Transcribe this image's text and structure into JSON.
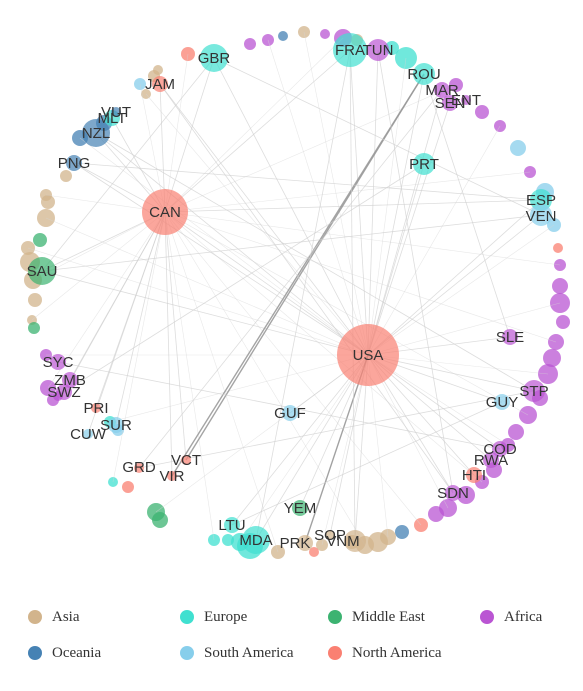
{
  "colors": {
    "Asia": "#d2b48c",
    "Europe": "#40e0d0",
    "Middle East": "#3cb371",
    "Africa": "#ba55d3",
    "Oceania": "#4682b4",
    "South America": "#87ceeb",
    "North America": "#fa8072"
  },
  "legend": {
    "items": [
      {
        "label": "Asia",
        "color": "#d2b48c"
      },
      {
        "label": "Europe",
        "color": "#40e0d0"
      },
      {
        "label": "Middle East",
        "color": "#3cb371"
      },
      {
        "label": "Africa",
        "color": "#ba55d3"
      },
      {
        "label": "Oceania",
        "color": "#4682b4"
      },
      {
        "label": "South America",
        "color": "#87ceeb"
      },
      {
        "label": "North America",
        "color": "#fa8072"
      }
    ]
  },
  "chart_data": {
    "type": "network",
    "nodes": [
      {
        "id": "USA",
        "region": "North America",
        "weight": 10
      },
      {
        "id": "CAN",
        "region": "North America",
        "weight": 6
      },
      {
        "id": "GBR",
        "region": "Europe",
        "weight": 4
      },
      {
        "id": "FRA",
        "region": "Europe",
        "weight": 5
      },
      {
        "id": "TUN",
        "region": "Africa",
        "weight": 3
      },
      {
        "id": "ROU",
        "region": "Europe",
        "weight": 3
      },
      {
        "id": "MAR",
        "region": "Africa",
        "weight": 2
      },
      {
        "id": "SEN",
        "region": "Africa",
        "weight": 2
      },
      {
        "id": "ENT",
        "region": "Africa",
        "weight": 1
      },
      {
        "id": "PRT",
        "region": "Europe",
        "weight": 3
      },
      {
        "id": "ESP",
        "region": "Europe",
        "weight": 3
      },
      {
        "id": "VEN",
        "region": "South America",
        "weight": 3
      },
      {
        "id": "SLE",
        "region": "Africa",
        "weight": 2
      },
      {
        "id": "STP",
        "region": "Africa",
        "weight": 3
      },
      {
        "id": "GUY",
        "region": "South America",
        "weight": 2
      },
      {
        "id": "COD",
        "region": "Africa",
        "weight": 2
      },
      {
        "id": "RWA",
        "region": "Africa",
        "weight": 2
      },
      {
        "id": "HTI",
        "region": "North America",
        "weight": 2
      },
      {
        "id": "SDN",
        "region": "Africa",
        "weight": 2
      },
      {
        "id": "YEM",
        "region": "Middle East",
        "weight": 2
      },
      {
        "id": "SOP",
        "region": "Asia",
        "weight": 1
      },
      {
        "id": "VNM",
        "region": "Asia",
        "weight": 3
      },
      {
        "id": "PRK",
        "region": "Asia",
        "weight": 2
      },
      {
        "id": "MDA",
        "region": "Europe",
        "weight": 4
      },
      {
        "id": "LTU",
        "region": "Europe",
        "weight": 2
      },
      {
        "id": "GUF",
        "region": "South America",
        "weight": 2
      },
      {
        "id": "VCT",
        "region": "North America",
        "weight": 1
      },
      {
        "id": "VIR",
        "region": "North America",
        "weight": 1
      },
      {
        "id": "GRD",
        "region": "North America",
        "weight": 1
      },
      {
        "id": "CUW",
        "region": "South America",
        "weight": 1
      },
      {
        "id": "SUR",
        "region": "South America",
        "weight": 2
      },
      {
        "id": "PRI",
        "region": "North America",
        "weight": 1
      },
      {
        "id": "SWZ",
        "region": "Africa",
        "weight": 2
      },
      {
        "id": "ZMB",
        "region": "Africa",
        "weight": 2
      },
      {
        "id": "SYC",
        "region": "Africa",
        "weight": 2
      },
      {
        "id": "SAU",
        "region": "Middle East",
        "weight": 4
      },
      {
        "id": "PNG",
        "region": "Oceania",
        "weight": 2
      },
      {
        "id": "NZL",
        "region": "Oceania",
        "weight": 4
      },
      {
        "id": "MLT",
        "region": "Europe",
        "weight": 2
      },
      {
        "id": "VUT",
        "region": "Oceania",
        "weight": 1
      },
      {
        "id": "JAM",
        "region": "North America",
        "weight": 2
      }
    ],
    "edges": [
      [
        "USA",
        "CAN"
      ],
      [
        "USA",
        "GBR"
      ],
      [
        "USA",
        "FRA"
      ],
      [
        "USA",
        "TUN"
      ],
      [
        "USA",
        "ROU"
      ],
      [
        "USA",
        "MAR"
      ],
      [
        "USA",
        "SEN"
      ],
      [
        "USA",
        "PRT"
      ],
      [
        "USA",
        "ESP"
      ],
      [
        "USA",
        "VEN"
      ],
      [
        "USA",
        "SLE"
      ],
      [
        "USA",
        "STP"
      ],
      [
        "USA",
        "GUY"
      ],
      [
        "USA",
        "COD"
      ],
      [
        "USA",
        "RWA"
      ],
      [
        "USA",
        "HTI"
      ],
      [
        "USA",
        "SDN"
      ],
      [
        "USA",
        "YEM"
      ],
      [
        "USA",
        "SOP"
      ],
      [
        "USA",
        "VNM"
      ],
      [
        "USA",
        "PRK"
      ],
      [
        "USA",
        "MDA"
      ],
      [
        "USA",
        "LTU"
      ],
      [
        "USA",
        "GUF"
      ],
      [
        "USA",
        "SAU"
      ],
      [
        "USA",
        "NZL"
      ],
      [
        "USA",
        "JAM"
      ],
      [
        "USA",
        "PNG"
      ],
      [
        "CAN",
        "GBR"
      ],
      [
        "CAN",
        "FRA"
      ],
      [
        "CAN",
        "SAU"
      ],
      [
        "CAN",
        "SWZ"
      ],
      [
        "CAN",
        "ZMB"
      ],
      [
        "CAN",
        "CUW"
      ],
      [
        "CAN",
        "PRI"
      ],
      [
        "CAN",
        "VCT"
      ],
      [
        "CAN",
        "VIR"
      ],
      [
        "CAN",
        "PNG"
      ],
      [
        "CAN",
        "NZL"
      ],
      [
        "CAN",
        "MLT"
      ],
      [
        "CAN",
        "JAM"
      ],
      [
        "CAN",
        "SUR"
      ],
      [
        "CAN",
        "ESP"
      ],
      [
        "VCT",
        "ROU"
      ],
      [
        "VIR",
        "ROU"
      ],
      [
        "PRK",
        "USA"
      ],
      [
        "GBR",
        "SAU"
      ],
      [
        "GBR",
        "VEN"
      ],
      [
        "FRA",
        "MDA"
      ],
      [
        "FRA",
        "VNM"
      ],
      [
        "TUN",
        "SDN"
      ],
      [
        "ROU",
        "SLE"
      ],
      [
        "ESP",
        "PNG"
      ],
      [
        "MAR",
        "GRD"
      ],
      [
        "PRT",
        "SWZ"
      ],
      [
        "GUY",
        "LTU"
      ],
      [
        "STP",
        "GRD"
      ],
      [
        "COD",
        "SYC"
      ],
      [
        "VEN",
        "SAU"
      ],
      [
        "JAM",
        "SDN"
      ],
      [
        "NZL",
        "STP"
      ]
    ]
  }
}
